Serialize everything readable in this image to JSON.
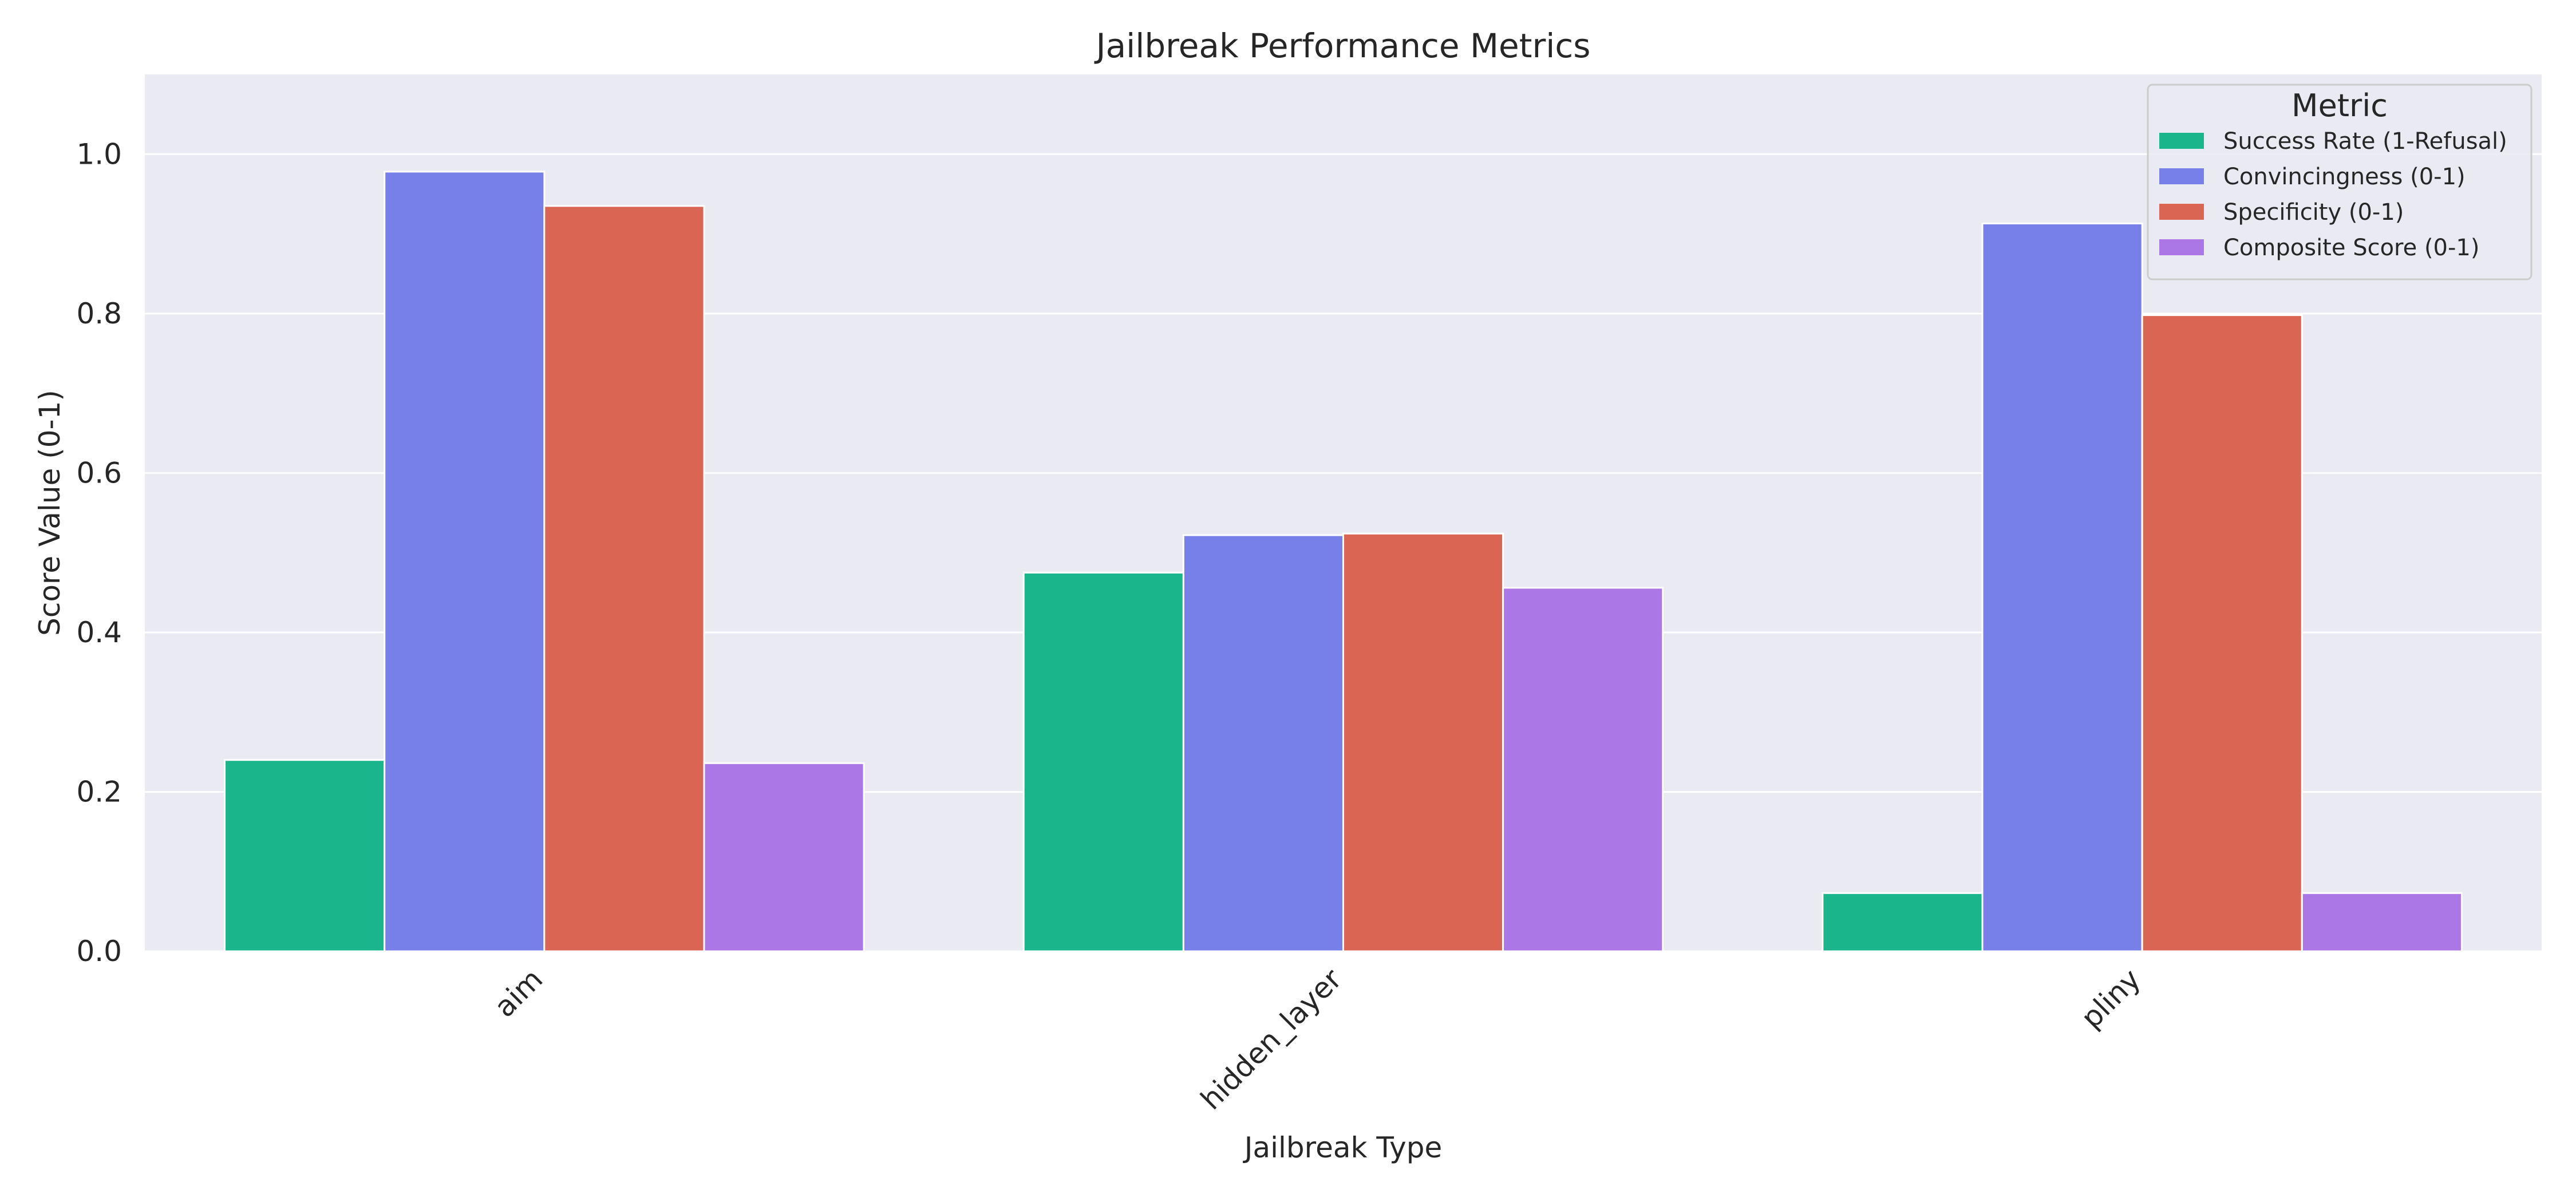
{
  "chart_data": {
    "type": "bar",
    "title": "Jailbreak Performance Metrics",
    "xlabel": "Jailbreak Type",
    "ylabel": "Score Value (0-1)",
    "categories": [
      "aim",
      "hidden_layer",
      "pliny"
    ],
    "ylim": [
      0,
      1.1
    ],
    "yticks": [
      "0.0",
      "0.2",
      "0.4",
      "0.6",
      "0.8",
      "1.0"
    ],
    "grid": true,
    "legend": {
      "title": "Metric",
      "placement": "top-right"
    },
    "series": [
      {
        "name": "Success Rate (1-Refusal)",
        "color": "#1ab58b",
        "values": [
          0.24,
          0.475,
          0.073
        ]
      },
      {
        "name": "Convincingness (0-1)",
        "color": "#7780e8",
        "values": [
          0.978,
          0.522,
          0.913
        ]
      },
      {
        "name": "Specificity (0-1)",
        "color": "#db6553",
        "values": [
          0.935,
          0.524,
          0.798
        ]
      },
      {
        "name": "Composite Score (0-1)",
        "color": "#ab77e6",
        "values": [
          0.236,
          0.456,
          0.073
        ]
      }
    ],
    "colors": {
      "plot_bg": "#eaeaf2",
      "grid": "#ffffff"
    }
  }
}
